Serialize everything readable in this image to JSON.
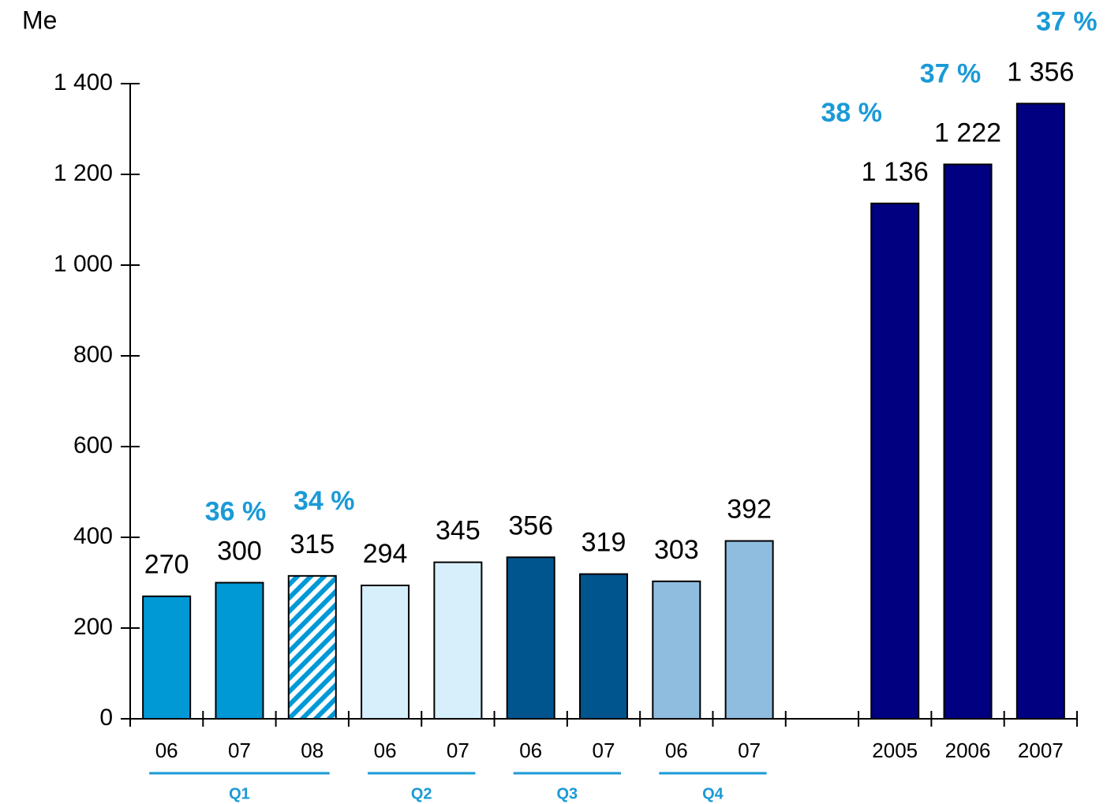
{
  "chart_data": {
    "type": "bar",
    "y_label": "Me",
    "categories": [
      "06",
      "07",
      "08",
      "06",
      "07",
      "06",
      "07",
      "06",
      "07",
      null,
      "2005",
      "2006",
      "2007"
    ],
    "values": [
      270,
      300,
      315,
      294,
      345,
      356,
      319,
      303,
      392,
      null,
      1136,
      1222,
      1356
    ],
    "value_labels": [
      "270",
      "300",
      "315",
      "294",
      "345",
      "356",
      "319",
      "303",
      "392",
      null,
      "1 136",
      "1 222",
      "1 356"
    ],
    "colors": [
      "#0099d6",
      "#0099d6",
      "#0099d6",
      "#d6effa",
      "#d6effa",
      "#00558f",
      "#00558f",
      "#8fbde0",
      "#8fbde0",
      null,
      "#000080",
      "#000080",
      "#000080"
    ],
    "hatch": [
      false,
      false,
      true,
      false,
      false,
      false,
      false,
      false,
      false,
      false,
      false,
      false,
      false
    ],
    "annotations": [
      {
        "text": "36 %",
        "index": 1
      },
      {
        "text": "34 %",
        "index": 2
      },
      {
        "text": "38 %",
        "index": 10
      },
      {
        "text": "37 %",
        "index": 11
      },
      {
        "text": "37 %",
        "index": 12
      }
    ],
    "groups": [
      {
        "label": "Q1",
        "start": 0,
        "end": 2
      },
      {
        "label": "Q2",
        "start": 3,
        "end": 4
      },
      {
        "label": "Q3",
        "start": 5,
        "end": 6
      },
      {
        "label": "Q4",
        "start": 7,
        "end": 8
      }
    ],
    "ylim": [
      0,
      1400
    ],
    "yticks": [
      0,
      200,
      400,
      600,
      800,
      {
        "value": 1000,
        "label": "1 000"
      },
      {
        "value": 1200,
        "label": "1 200"
      },
      {
        "value": 1400,
        "label": "1 400"
      }
    ],
    "grid": false
  }
}
